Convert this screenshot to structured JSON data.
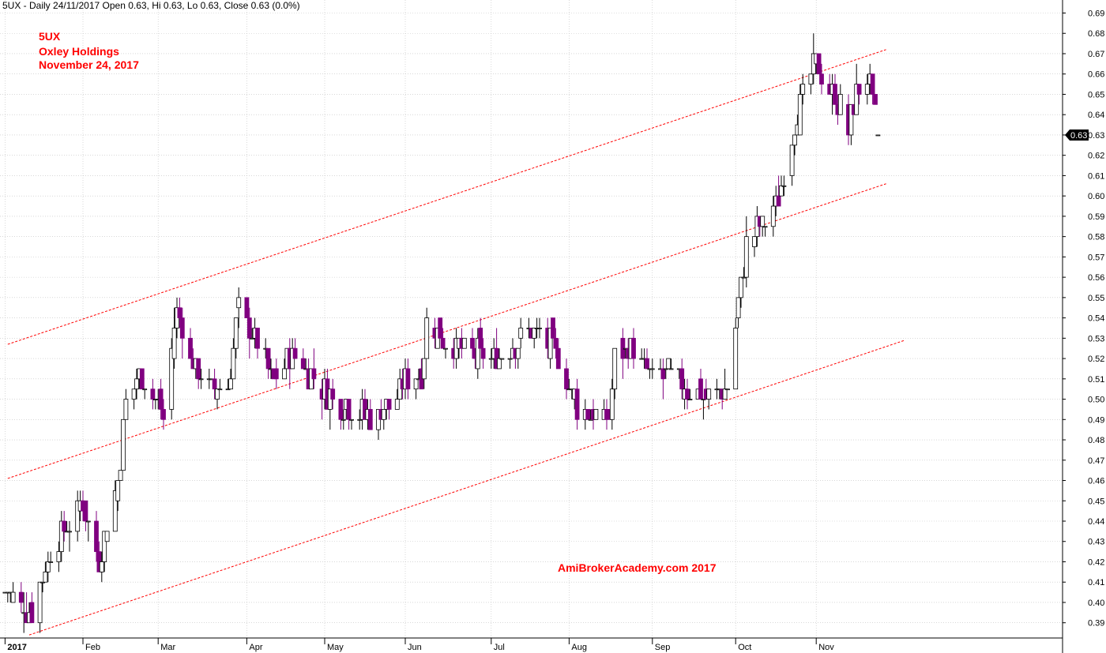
{
  "header": "5UX - Daily 24/11/2017 Open 0.63, Hi 0.63, Lo 0.63, Close 0.63 (0.0%)",
  "title_lines": [
    "5UX",
    "Oxley Holdings",
    "November 24, 2017"
  ],
  "watermark": "AmiBrokerAcademy.com  2017",
  "last_price_label": "0.63",
  "colors": {
    "up": "#ffffff",
    "up_outline": "#000000",
    "down": "#800080",
    "channel": "#ff0000",
    "grid": "#c0c0c0",
    "label_bg": "#000000"
  },
  "chart_data": {
    "type": "candlestick",
    "symbol": "5UX",
    "name": "Oxley Holdings",
    "date": "November 24, 2017",
    "ylim": [
      0.38,
      0.695
    ],
    "y_ticks": [
      0.39,
      0.4,
      0.41,
      0.42,
      0.43,
      0.44,
      0.45,
      0.46,
      0.47,
      0.48,
      0.49,
      0.5,
      0.51,
      0.52,
      0.53,
      0.54,
      0.55,
      0.56,
      0.57,
      0.58,
      0.59,
      0.6,
      0.61,
      0.62,
      0.63,
      0.64,
      0.65,
      0.66,
      0.67,
      0.68,
      0.69
    ],
    "x_labels": [
      "2017",
      "Feb",
      "Mar",
      "Apr",
      "May",
      "Jun",
      "Jul",
      "Aug",
      "Sep",
      "Oct",
      "Nov"
    ],
    "channel_lines": [
      {
        "from": [
          "2017-01-04",
          0.527
        ],
        "to": [
          "2017-11-27",
          0.672
        ]
      },
      {
        "from": [
          "2017-01-04",
          0.461
        ],
        "to": [
          "2017-11-27",
          0.606
        ]
      },
      {
        "from": [
          "2017-01-12",
          0.384
        ],
        "to": [
          "2017-12-04",
          0.529
        ]
      }
    ],
    "anchors": [
      [
        "2017-01-03",
        0.405
      ],
      [
        "2017-01-13",
        0.395
      ],
      [
        "2017-01-20",
        0.425
      ],
      [
        "2017-01-27",
        0.438
      ],
      [
        "2017-02-01",
        0.45
      ],
      [
        "2017-02-07",
        0.422
      ],
      [
        "2017-02-14",
        0.458
      ],
      [
        "2017-02-17",
        0.5
      ],
      [
        "2017-02-22",
        0.512
      ],
      [
        "2017-02-28",
        0.5
      ],
      [
        "2017-03-03",
        0.492
      ],
      [
        "2017-03-08",
        0.545
      ],
      [
        "2017-03-13",
        0.52
      ],
      [
        "2017-03-20",
        0.505
      ],
      [
        "2017-03-27",
        0.505
      ],
      [
        "2017-03-31",
        0.545
      ],
      [
        "2017-04-06",
        0.53
      ],
      [
        "2017-04-13",
        0.51
      ],
      [
        "2017-04-21",
        0.522
      ],
      [
        "2017-04-28",
        0.51
      ],
      [
        "2017-05-05",
        0.5
      ],
      [
        "2017-05-12",
        0.497
      ],
      [
        "2017-05-19",
        0.49
      ],
      [
        "2017-05-26",
        0.497
      ],
      [
        "2017-06-02",
        0.51
      ],
      [
        "2017-06-07",
        0.51
      ],
      [
        "2017-06-09",
        0.54
      ],
      [
        "2017-06-16",
        0.527
      ],
      [
        "2017-06-23",
        0.524
      ],
      [
        "2017-06-30",
        0.522
      ],
      [
        "2017-07-07",
        0.521
      ],
      [
        "2017-07-14",
        0.53
      ],
      [
        "2017-07-21",
        0.534
      ],
      [
        "2017-07-28",
        0.52
      ],
      [
        "2017-08-04",
        0.497
      ],
      [
        "2017-08-11",
        0.492
      ],
      [
        "2017-08-16",
        0.49
      ],
      [
        "2017-08-18",
        0.523
      ],
      [
        "2017-08-25",
        0.525
      ],
      [
        "2017-09-01",
        0.51
      ],
      [
        "2017-09-08",
        0.512
      ],
      [
        "2017-09-15",
        0.505
      ],
      [
        "2017-09-22",
        0.5
      ],
      [
        "2017-09-29",
        0.508
      ],
      [
        "2017-10-06",
        0.575
      ],
      [
        "2017-10-11",
        0.585
      ],
      [
        "2017-10-18",
        0.598
      ],
      [
        "2017-10-25",
        0.64
      ],
      [
        "2017-11-01",
        0.665
      ],
      [
        "2017-11-08",
        0.65
      ],
      [
        "2017-11-13",
        0.632
      ],
      [
        "2017-11-16",
        0.65
      ],
      [
        "2017-11-20",
        0.66
      ],
      [
        "2017-11-24",
        0.63
      ]
    ]
  }
}
